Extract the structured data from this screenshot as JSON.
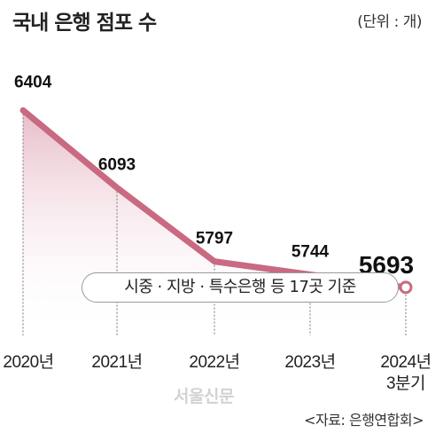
{
  "header": {
    "title": "국내 은행 점포 수",
    "unit": "(단위 : 개)"
  },
  "note": "시중 · 지방 · 특수은행 등 17곳 기준",
  "watermark": "서울신문",
  "source": "<자료: 은행연합회>",
  "colors": {
    "line": "#c96a82",
    "fill": "#e9c4cf",
    "grid": "#777777"
  },
  "chart_data": {
    "type": "line",
    "categories": [
      "2020년",
      "2021년",
      "2022년",
      "2023년",
      "2024년\n3분기"
    ],
    "values": [
      6404,
      6093,
      5797,
      5744,
      5693
    ],
    "data_labels": [
      "6404",
      "6093",
      "5797",
      "5744",
      "5693"
    ],
    "title": "국내 은행 점포 수",
    "xlabel": "",
    "ylabel": "",
    "ylim": [
      5450,
      6480
    ],
    "highlight_last": true,
    "grid": false,
    "legend": "none"
  }
}
